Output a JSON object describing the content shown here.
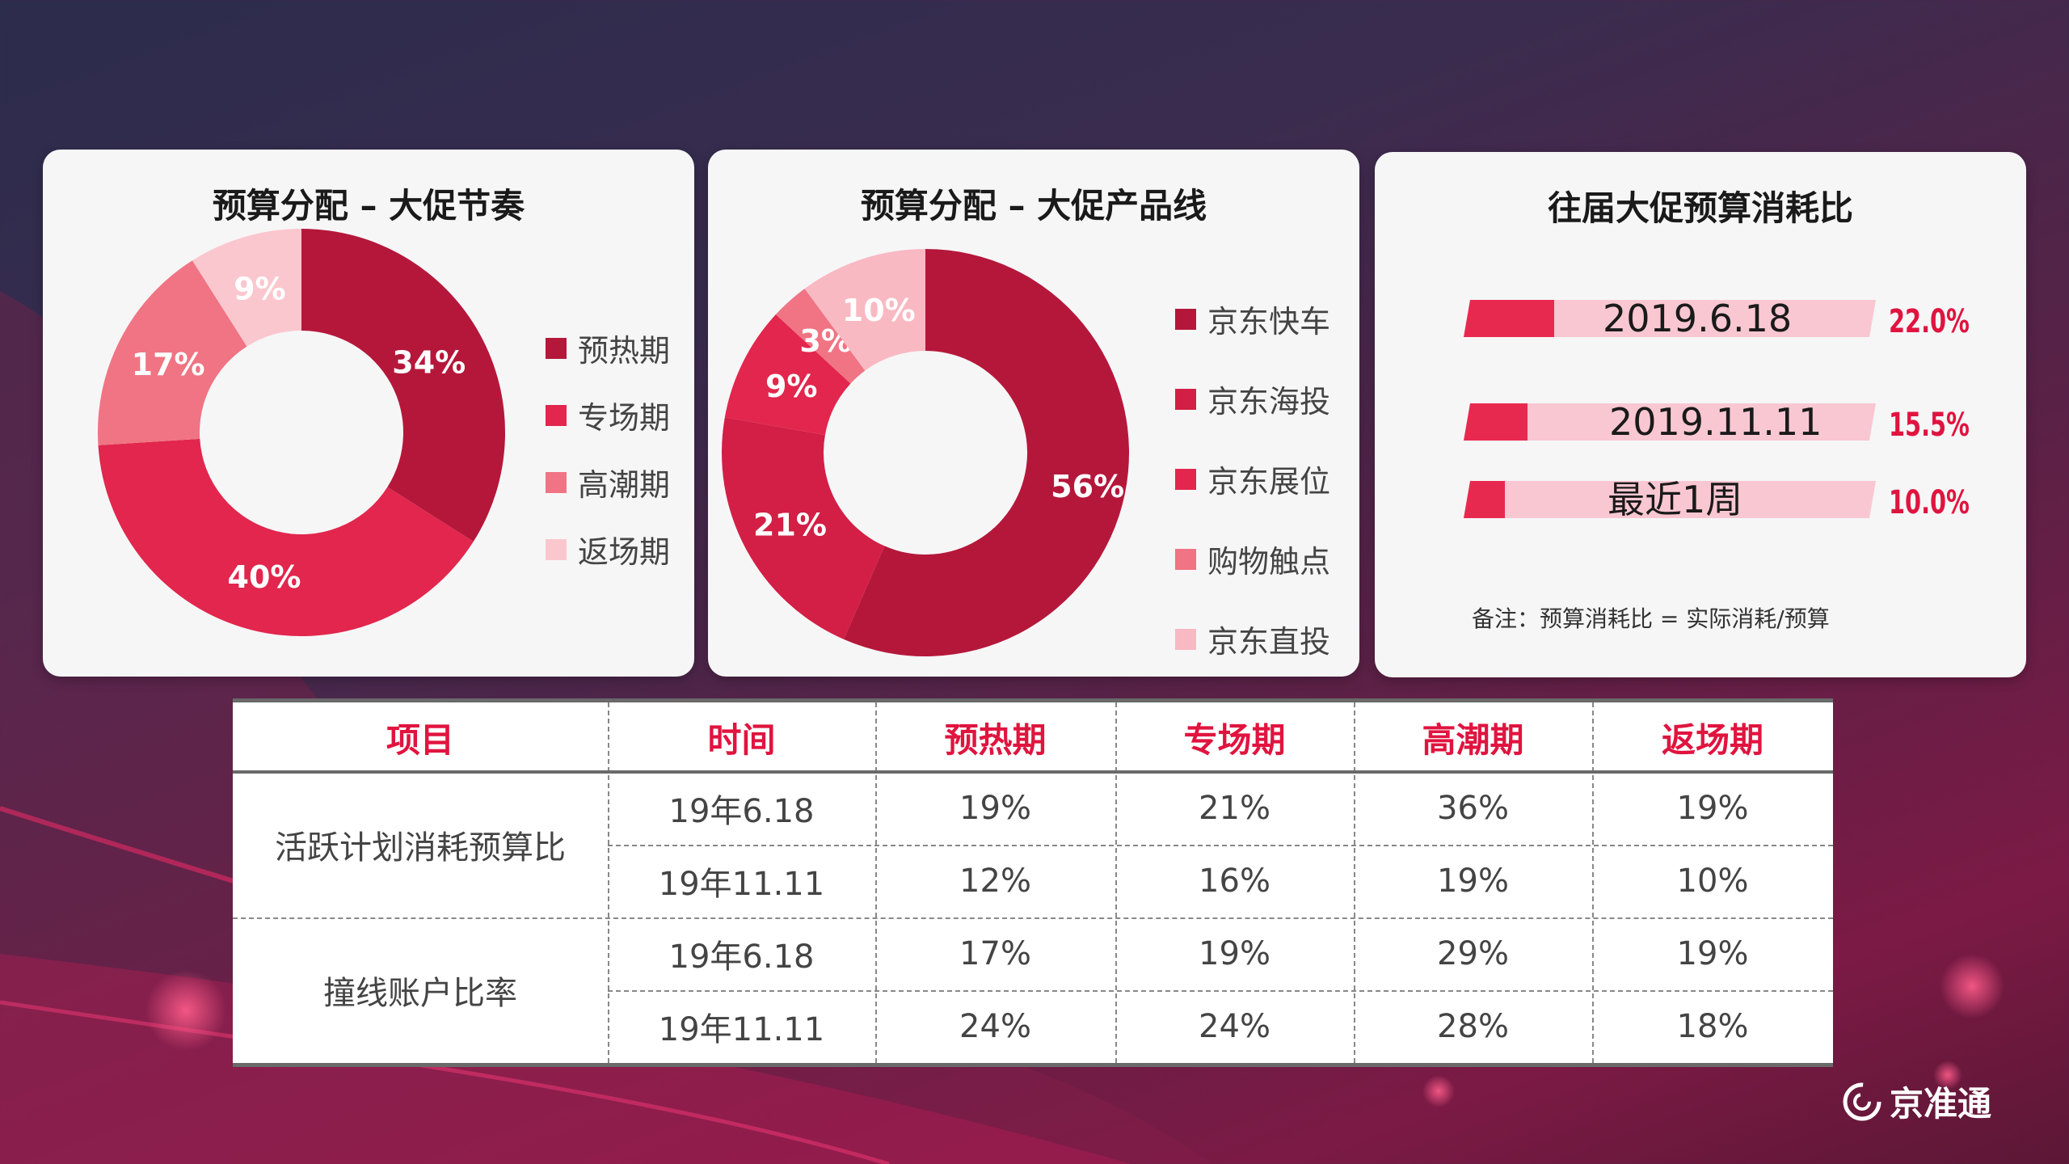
{
  "colors": {
    "dark": "#b5173a",
    "mid": "#e2264d",
    "light": "#f07483",
    "pale": "#f9b9c2",
    "palest": "#fbc7ce",
    "accent": "#e0143f"
  },
  "chart_data": [
    {
      "type": "pie",
      "title": "预算分配 – 大促节奏",
      "categories": [
        "预热期",
        "专场期",
        "高潮期",
        "返场期"
      ],
      "values": [
        34,
        40,
        17,
        9
      ],
      "labels": [
        "34%",
        "40%",
        "17%",
        "9%"
      ],
      "legend": "right"
    },
    {
      "type": "pie",
      "title": "预算分配 – 大促产品线",
      "categories": [
        "京东快车",
        "京东海投",
        "京东展位",
        "购物触点",
        "京东直投"
      ],
      "values": [
        56,
        21,
        9,
        3,
        10
      ],
      "labels": [
        "56%",
        "21%",
        "9%",
        "3%",
        "10%"
      ],
      "legend": "right"
    },
    {
      "type": "bar",
      "title": "往届大促预算消耗比",
      "categories": [
        "2019.6.18",
        "2019.11.11",
        "最近1周"
      ],
      "values": [
        22.0,
        15.5,
        10.0
      ],
      "labels": [
        "22.0%",
        "15.5%",
        "10.0%"
      ],
      "note": "备注：预算消耗比 = 实际消耗/预算"
    },
    {
      "type": "table",
      "headers": [
        "项目",
        "时间",
        "预热期",
        "专场期",
        "高潮期",
        "返场期"
      ],
      "groups": [
        {
          "name": "活跃计划消耗预算比",
          "rows": [
            {
              "time": "19年6.18",
              "cells": [
                "19%",
                "21%",
                "36%",
                "19%"
              ]
            },
            {
              "time": "19年11.11",
              "cells": [
                "12%",
                "16%",
                "19%",
                "10%"
              ]
            }
          ]
        },
        {
          "name": "撞线账户比率",
          "rows": [
            {
              "time": "19年6.18",
              "cells": [
                "17%",
                "19%",
                "29%",
                "19%"
              ]
            },
            {
              "time": "19年11.11",
              "cells": [
                "24%",
                "24%",
                "28%",
                "18%"
              ]
            }
          ]
        }
      ]
    }
  ],
  "brand": {
    "name": "京准通",
    "icon": "jzt-logo-icon"
  }
}
